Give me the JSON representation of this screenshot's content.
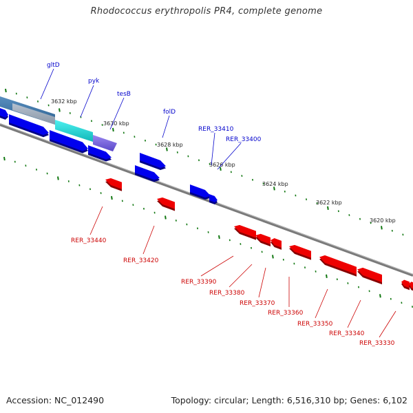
{
  "title": "Rhodococcus erythropolis PR4, complete genome",
  "footer": {
    "accession": "Accession: NC_012490",
    "topology": "Topology: circular; Length: 6,516,310 bp; Genes: 6,102"
  },
  "colors": {
    "forward_gene": "#0000ee",
    "reverse_gene": "#ee0000",
    "backbone": "#888888",
    "tick": "#117711",
    "forward_label": "#0000cc",
    "reverse_label": "#cc0000"
  },
  "scale_labels": [
    "3632 kbp",
    "3630 kbp",
    "3628 kbp",
    "3626 kbp",
    "3624 kbp",
    "3622 kbp",
    "3620 kbp"
  ],
  "forward_gene_labels": [
    "gltD",
    "pyk",
    "tesB",
    "folD",
    "RER_33410",
    "RER_33400"
  ],
  "reverse_gene_labels": [
    "RER_33440",
    "RER_33420",
    "RER_33390",
    "RER_33380",
    "RER_33370",
    "RER_33360",
    "RER_33350",
    "RER_33340",
    "RER_33330"
  ]
}
